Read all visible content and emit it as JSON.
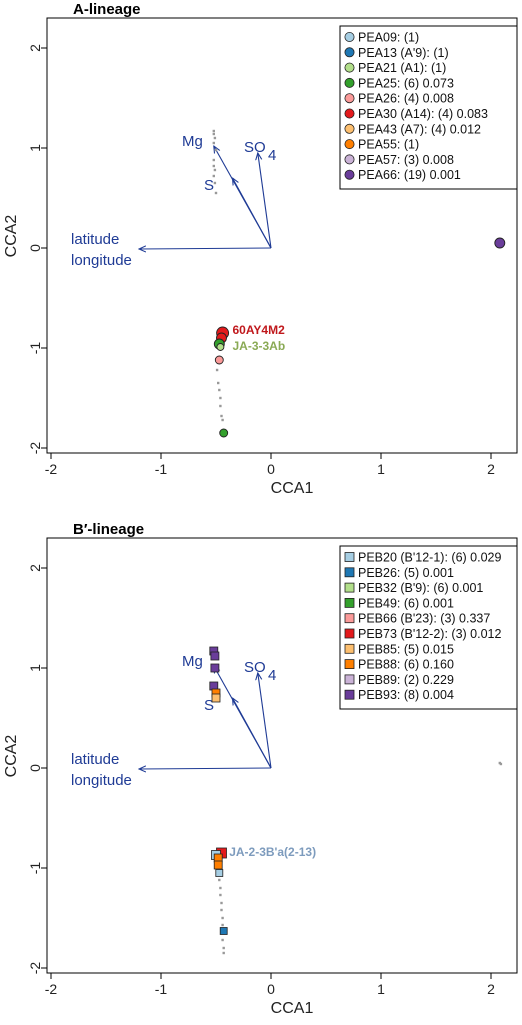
{
  "chart_data": [
    {
      "type": "scatter",
      "title": "A-lineage",
      "xlabel": "CCA1",
      "ylabel": "CCA2",
      "xlim": [
        -2,
        2.2
      ],
      "ylim": [
        -2,
        2.2
      ],
      "x_ticks": [
        "-2",
        "-1",
        "0",
        "1",
        "2"
      ],
      "y_ticks": [
        "-2",
        "-1",
        "0",
        "1",
        "2"
      ],
      "marker": "circle",
      "legend_position": "top-right",
      "legend": [
        {
          "label": "PEA09: (1)",
          "color": "#a6cee3"
        },
        {
          "label": "PEA13 (A'9): (1)",
          "color": "#1f78b4"
        },
        {
          "label": "PEA21 (A1): (1)",
          "color": "#b2df8a"
        },
        {
          "label": "PEA25: (6) 0.073",
          "color": "#33a02c"
        },
        {
          "label": "PEA26: (4) 0.008",
          "color": "#fb9a99"
        },
        {
          "label": "PEA30 (A14): (4) 0.083",
          "color": "#e31a1c"
        },
        {
          "label": "PEA43 (A7): (4) 0.012",
          "color": "#fdbf6f"
        },
        {
          "label": "PEA55: (1)",
          "color": "#ff7f00"
        },
        {
          "label": "PEA57: (3) 0.008",
          "color": "#cab2d6"
        },
        {
          "label": "PEA66: (19) 0.001",
          "color": "#6a3d9a"
        }
      ],
      "vectors": [
        {
          "label": "Mg",
          "x": -0.52,
          "y": 1.02
        },
        {
          "label": "SO",
          "sub": "4",
          "x": -0.12,
          "y": 0.95
        },
        {
          "label": "S",
          "x": -0.35,
          "y": 0.7
        },
        {
          "label": "latitude",
          "x": -1.2,
          "y": -0.01
        },
        {
          "label": "longitude",
          "x": -1.2,
          "y": -0.01
        }
      ],
      "points": [
        {
          "x": 2.08,
          "y": 0.05,
          "color": "#6a3d9a",
          "r": 5
        },
        {
          "x": -0.44,
          "y": -0.85,
          "color": "#e31a1c",
          "r": 6
        },
        {
          "x": -0.45,
          "y": -0.9,
          "color": "#e31a1c",
          "r": 5
        },
        {
          "x": -0.47,
          "y": -0.96,
          "color": "#33a02c",
          "r": 5
        },
        {
          "x": -0.46,
          "y": -0.99,
          "color": "#b2df8a",
          "r": 3.5
        },
        {
          "x": -0.47,
          "y": -1.12,
          "color": "#fb9a99",
          "r": 4
        },
        {
          "x": -0.43,
          "y": -1.85,
          "color": "#33a02c",
          "r": 4
        }
      ],
      "grey_points": [
        [
          -0.52,
          1.17
        ],
        [
          -0.52,
          1.14
        ],
        [
          -0.51,
          1.1
        ],
        [
          -0.52,
          1.05
        ],
        [
          -0.5,
          0.98
        ],
        [
          -0.52,
          0.88
        ],
        [
          -0.52,
          0.82
        ],
        [
          -0.51,
          0.78
        ],
        [
          -0.52,
          0.72
        ],
        [
          -0.51,
          0.65
        ],
        [
          -0.5,
          0.55
        ],
        [
          -0.49,
          -1.22
        ],
        [
          -0.48,
          -1.35
        ],
        [
          -0.47,
          -1.42
        ],
        [
          -0.46,
          -1.5
        ],
        [
          -0.46,
          -1.58
        ],
        [
          -0.45,
          -1.68
        ],
        [
          -0.44,
          -1.72
        ]
      ],
      "annotations": [
        {
          "text": "60AY4M2",
          "x": -0.35,
          "y": -0.82,
          "color": "#c0181c"
        },
        {
          "text": "JA-3-3Ab",
          "x": -0.35,
          "y": -0.98,
          "color": "#8aaa55"
        }
      ]
    },
    {
      "type": "scatter",
      "title": "B′-lineage",
      "xlabel": "CCA1",
      "ylabel": "CCA2",
      "xlim": [
        -2,
        2.2
      ],
      "ylim": [
        -2,
        2.2
      ],
      "x_ticks": [
        "-2",
        "-1",
        "0",
        "1",
        "2"
      ],
      "y_ticks": [
        "-2",
        "-1",
        "0",
        "1",
        "2"
      ],
      "marker": "square",
      "legend_position": "top-right",
      "legend": [
        {
          "label": "PEB20 (B'12-1): (6) 0.029",
          "color": "#a6cee3"
        },
        {
          "label": "PEB26: (5) 0.001",
          "color": "#1f78b4"
        },
        {
          "label": "PEB32 (B'9): (6) 0.001",
          "color": "#b2df8a"
        },
        {
          "label": "PEB49: (6) 0.001",
          "color": "#33a02c"
        },
        {
          "label": "PEB66 (B'23): (3) 0.337",
          "color": "#fb9a99"
        },
        {
          "label": "PEB73 (B'12-2): (3) 0.012",
          "color": "#e31a1c"
        },
        {
          "label": "PEB85: (5) 0.015",
          "color": "#fdbf6f"
        },
        {
          "label": "PEB88: (6) 0.160",
          "color": "#ff7f00"
        },
        {
          "label": "PEB89: (2) 0.229",
          "color": "#cab2d6"
        },
        {
          "label": "PEB93: (8) 0.004",
          "color": "#6a3d9a"
        }
      ],
      "vectors": [
        {
          "label": "Mg",
          "x": -0.52,
          "y": 1.02
        },
        {
          "label": "SO",
          "sub": "4",
          "x": -0.12,
          "y": 0.95
        },
        {
          "label": "S",
          "x": -0.35,
          "y": 0.7
        },
        {
          "label": "latitude",
          "x": -1.2,
          "y": -0.01
        },
        {
          "label": "longitude",
          "x": -1.2,
          "y": -0.01
        }
      ],
      "points": [
        {
          "x": -0.52,
          "y": 1.17,
          "color": "#6a3d9a",
          "r": 4
        },
        {
          "x": -0.51,
          "y": 1.12,
          "color": "#6a3d9a",
          "r": 4
        },
        {
          "x": -0.51,
          "y": 1.0,
          "color": "#6a3d9a",
          "r": 4
        },
        {
          "x": -0.52,
          "y": 0.82,
          "color": "#6a3d9a",
          "r": 4
        },
        {
          "x": -0.5,
          "y": 0.75,
          "color": "#ff7f00",
          "r": 4
        },
        {
          "x": -0.5,
          "y": 0.7,
          "color": "#fdbf6f",
          "r": 4
        },
        {
          "x": -0.45,
          "y": -0.85,
          "color": "#e31a1c",
          "r": 5
        },
        {
          "x": -0.5,
          "y": -0.87,
          "color": "#a6cee3",
          "r": 4.5
        },
        {
          "x": -0.48,
          "y": -0.9,
          "color": "#ff7f00",
          "r": 4
        },
        {
          "x": -0.48,
          "y": -0.97,
          "color": "#ff7f00",
          "r": 4
        },
        {
          "x": -0.47,
          "y": -1.05,
          "color": "#a6cee3",
          "r": 3.5
        },
        {
          "x": -0.43,
          "y": -1.63,
          "color": "#1f78b4",
          "r": 3.5
        }
      ],
      "grey_points": [
        [
          -0.47,
          -1.12
        ],
        [
          -0.46,
          -1.2
        ],
        [
          -0.46,
          -1.27
        ],
        [
          -0.45,
          -1.35
        ],
        [
          -0.45,
          -1.42
        ],
        [
          -0.44,
          -1.5
        ],
        [
          -0.44,
          -1.57
        ],
        [
          -0.44,
          -1.72
        ],
        [
          -0.43,
          -1.8
        ],
        [
          -0.43,
          -1.85
        ],
        [
          2.08,
          0.05
        ],
        [
          2.09,
          0.04
        ]
      ],
      "annotations": [
        {
          "text": "JA-2-3B'a(2-13)",
          "x": -0.38,
          "y": -0.84,
          "color": "#7d9bbd"
        }
      ]
    }
  ]
}
